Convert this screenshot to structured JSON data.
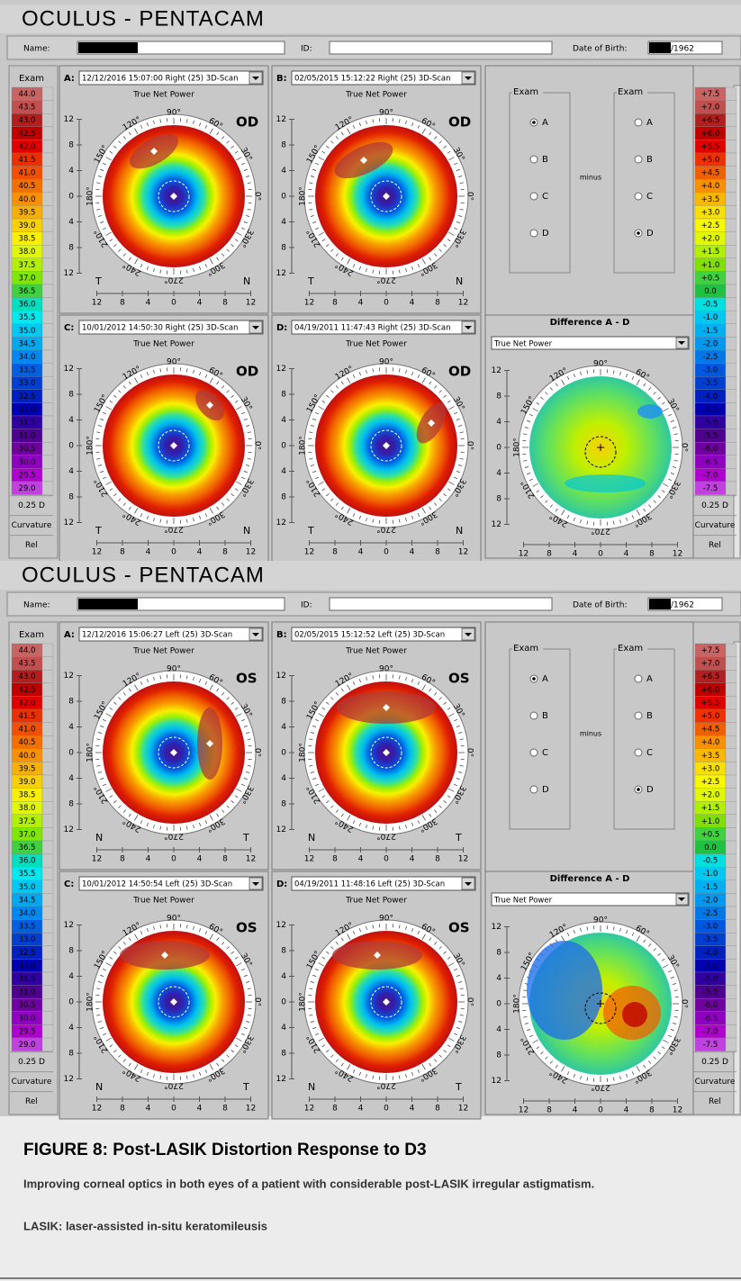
{
  "panels": [
    {
      "title": "OCULUS - PENTACAM",
      "name_label": "Name:",
      "id_label": "ID:",
      "dob_label": "Date of Birth:",
      "dob": "/1962",
      "eye": "OD",
      "side_left": "T",
      "side_right": "N",
      "map_subtitle": "True Net Power",
      "maps": [
        {
          "letter": "A:",
          "exam": "12/12/2016 15:07:00  Right  (25) 3D-Scan"
        },
        {
          "letter": "B:",
          "exam": "02/05/2015 15:12:22  Right  (25) 3D-Scan"
        },
        {
          "letter": "C:",
          "exam": "10/01/2012 14:50:30  Right  (25) 3D-Scan"
        },
        {
          "letter": "D:",
          "exam": "04/19/2011 11:47:43  Right  (25) 3D-Scan"
        }
      ],
      "radio_groups": [
        {
          "title": "Exam",
          "options": [
            "A",
            "B",
            "C",
            "D"
          ],
          "selected": "A"
        },
        {
          "title": "Exam",
          "options": [
            "A",
            "B",
            "C",
            "D"
          ],
          "selected": "D"
        }
      ],
      "minus": "minus",
      "diff_title": "Difference A - D",
      "diff_mode": "True Net Power"
    },
    {
      "title": "OCULUS - PENTACAM",
      "name_label": "Name:",
      "id_label": "ID:",
      "dob_label": "Date of Birth:",
      "dob": "/1962",
      "eye": "OS",
      "side_left": "N",
      "side_right": "T",
      "map_subtitle": "True Net Power",
      "maps": [
        {
          "letter": "A:",
          "exam": "12/12/2016 15:06:27  Left  (25) 3D-Scan"
        },
        {
          "letter": "B:",
          "exam": "02/05/2015 15:12:52  Left  (25) 3D-Scan"
        },
        {
          "letter": "C:",
          "exam": "10/01/2012 14:50:54  Left  (25) 3D-Scan"
        },
        {
          "letter": "D:",
          "exam": "04/19/2011 11:48:16  Left  (25) 3D-Scan"
        }
      ],
      "radio_groups": [
        {
          "title": "Exam",
          "options": [
            "A",
            "B",
            "C",
            "D"
          ],
          "selected": "A"
        },
        {
          "title": "Exam",
          "options": [
            "A",
            "B",
            "C",
            "D"
          ],
          "selected": "D"
        }
      ],
      "minus": "minus",
      "diff_title": "Difference A - D",
      "diff_mode": "True Net Power"
    }
  ],
  "exam_scale": {
    "header": "Exam",
    "labels": [
      "44.0",
      "43.5",
      "43.0",
      "42.5",
      "42.0",
      "41.5",
      "41.0",
      "40.5",
      "40.0",
      "39.5",
      "39.0",
      "38.5",
      "38.0",
      "37.5",
      "37.0",
      "36.5",
      "36.0",
      "35.5",
      "35.0",
      "34.5",
      "34.0",
      "33.5",
      "33.0",
      "32.5",
      "32.0",
      "31.5",
      "31.0",
      "30.5",
      "30.0",
      "29.5",
      "29.0"
    ],
    "colors": [
      "#c86464",
      "#c05050",
      "#b01e1e",
      "#c00000",
      "#e00000",
      "#e83000",
      "#f05000",
      "#f07000",
      "#f89000",
      "#f8b000",
      "#f8d000",
      "#f8f000",
      "#e0f800",
      "#b0f000",
      "#80e800",
      "#40d040",
      "#00e0c0",
      "#00e8f0",
      "#00c8f0",
      "#00a8f0",
      "#0088f0",
      "#0060e0",
      "#0040d0",
      "#0020c0",
      "#0000b0",
      "#3000a0",
      "#500090",
      "#7000a0",
      "#9000c0",
      "#b000d0",
      "#c040e0"
    ],
    "step": "0.25 D",
    "kind": "Curvature",
    "mode": "Rel"
  },
  "diff_scale": {
    "labels": [
      "+7.5",
      "+7.0",
      "+6.5",
      "+6.0",
      "+5.5",
      "+5.0",
      "+4.5",
      "+4.0",
      "+3.5",
      "+3.0",
      "+2.5",
      "+2.0",
      "+1.5",
      "+1.0",
      "+0.5",
      "0.0",
      "-0.5",
      "-1.0",
      "-1.5",
      "-2.0",
      "-2.5",
      "-3.0",
      "-3.5",
      "-4.0",
      "-4.5",
      "-5.0",
      "-5.5",
      "-6.0",
      "-6.5",
      "-7.0",
      "-7.5"
    ],
    "colors": [
      "#c86464",
      "#c05050",
      "#b02020",
      "#c00000",
      "#e00000",
      "#f03000",
      "#f06000",
      "#f89000",
      "#f8b800",
      "#f8e000",
      "#f8f800",
      "#e0f800",
      "#b0f000",
      "#80e000",
      "#40d040",
      "#20c040",
      "#00e0e0",
      "#00c8f0",
      "#00b0f0",
      "#0098f0",
      "#0078e8",
      "#0058e0",
      "#0040d0",
      "#0020c0",
      "#0000b0",
      "#3000a0",
      "#500090",
      "#7000a0",
      "#9000c0",
      "#b000d0",
      "#c040e0"
    ],
    "step": "0.25 D",
    "kind": "Curvature",
    "mode": "Rel"
  },
  "map_axis": {
    "ticks": [
      "12",
      "8",
      "4",
      "0",
      "4",
      "8",
      "12"
    ],
    "angles": [
      "0°",
      "30°",
      "60°",
      "90°",
      "120°",
      "150°",
      "180°",
      "210°",
      "240°",
      "270°",
      "300°",
      "330°"
    ]
  },
  "caption": {
    "title": "FIGURE 8: Post-LASIK Distortion Response to D3",
    "text": "Improving corneal optics in both eyes of a patient with considerable post-LASIK irregular astigmatism.",
    "abbreviation": "LASIK: laser-assisted in-situ keratomileusis"
  }
}
